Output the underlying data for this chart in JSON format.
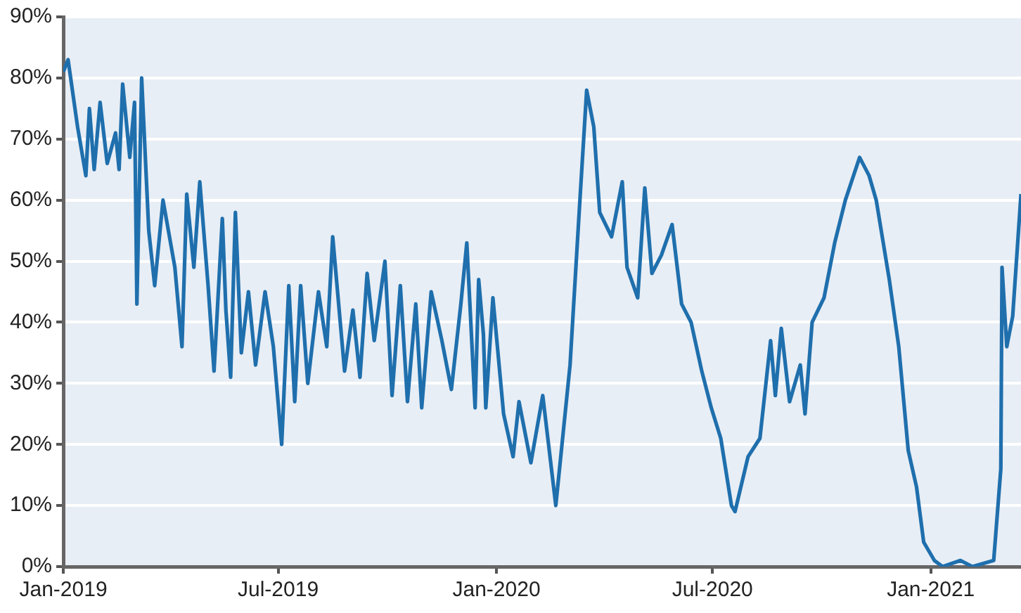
{
  "chart_data": {
    "type": "line",
    "grid": "y",
    "xlim": [
      "2019-01-01",
      "2021-03-18"
    ],
    "xticks": [
      {
        "value": "2019-01",
        "label": "Jan-2019"
      },
      {
        "value": "2019-07",
        "label": "Jul-2019"
      },
      {
        "value": "2020-01",
        "label": "Jan-2020"
      },
      {
        "value": "2020-07",
        "label": "Jul-2020"
      },
      {
        "value": "2021-01",
        "label": "Jan-2021"
      }
    ],
    "ylim": [
      0,
      90
    ],
    "yticks": [
      {
        "value": 0,
        "label": "0%"
      },
      {
        "value": 10,
        "label": "10%"
      },
      {
        "value": 20,
        "label": "20%"
      },
      {
        "value": 30,
        "label": "30%"
      },
      {
        "value": 40,
        "label": "40%"
      },
      {
        "value": 50,
        "label": "50%"
      },
      {
        "value": 60,
        "label": "60%"
      },
      {
        "value": 70,
        "label": "70%"
      },
      {
        "value": 80,
        "label": "80%"
      },
      {
        "value": 90,
        "label": "90%"
      }
    ],
    "legend": false,
    "marker": "none",
    "line_style": "solid",
    "x": [
      "2019-01-01",
      "2019-01-05",
      "2019-01-13",
      "2019-01-20",
      "2019-01-23",
      "2019-01-27",
      "2019-02-01",
      "2019-02-07",
      "2019-02-14",
      "2019-02-17",
      "2019-02-20",
      "2019-02-26",
      "2019-03-02",
      "2019-03-04",
      "2019-03-08",
      "2019-03-14",
      "2019-03-19",
      "2019-03-26",
      "2019-04-05",
      "2019-04-11",
      "2019-04-15",
      "2019-04-21",
      "2019-04-26",
      "2019-05-03",
      "2019-05-08",
      "2019-05-15",
      "2019-05-18",
      "2019-05-22",
      "2019-05-26",
      "2019-05-31",
      "2019-06-06",
      "2019-06-12",
      "2019-06-20",
      "2019-06-27",
      "2019-07-04",
      "2019-07-10",
      "2019-07-15",
      "2019-07-20",
      "2019-07-26",
      "2019-08-04",
      "2019-08-11",
      "2019-08-16",
      "2019-08-26",
      "2019-09-02",
      "2019-09-08",
      "2019-09-14",
      "2019-09-20",
      "2019-09-29",
      "2019-10-05",
      "2019-10-12",
      "2019-10-18",
      "2019-10-25",
      "2019-10-30",
      "2019-11-07",
      "2019-11-16",
      "2019-11-24",
      "2019-12-02",
      "2019-12-07",
      "2019-12-14",
      "2019-12-17",
      "2019-12-21",
      "2019-12-23",
      "2019-12-29",
      "2020-01-07",
      "2020-01-15",
      "2020-01-20",
      "2020-01-30",
      "2020-02-09",
      "2020-02-20",
      "2020-03-03",
      "2020-03-11",
      "2020-03-17",
      "2020-03-23",
      "2020-03-28",
      "2020-04-07",
      "2020-04-16",
      "2020-04-20",
      "2020-04-29",
      "2020-05-05",
      "2020-05-11",
      "2020-05-19",
      "2020-05-28",
      "2020-06-05",
      "2020-06-13",
      "2020-06-22",
      "2020-06-30",
      "2020-07-08",
      "2020-07-17",
      "2020-07-20",
      "2020-07-31",
      "2020-08-10",
      "2020-08-19",
      "2020-08-23",
      "2020-08-28",
      "2020-09-04",
      "2020-09-13",
      "2020-09-17",
      "2020-09-23",
      "2020-10-03",
      "2020-10-12",
      "2020-10-21",
      "2020-11-02",
      "2020-11-10",
      "2020-11-16",
      "2020-11-27",
      "2020-12-05",
      "2020-12-13",
      "2020-12-20",
      "2020-12-26",
      "2021-01-04",
      "2021-01-11",
      "2021-01-26",
      "2021-02-05",
      "2021-02-23",
      "2021-03-01",
      "2021-03-02",
      "2021-03-06",
      "2021-03-11",
      "2021-03-18"
    ],
    "series": [
      {
        "color": "#1f6fad",
        "values": [
          81,
          83,
          72,
          64,
          75,
          65,
          76,
          66,
          71,
          65,
          79,
          67,
          76,
          43,
          80,
          55,
          46,
          60,
          49,
          36,
          61,
          49,
          63,
          46,
          32,
          57,
          42,
          31,
          58,
          35,
          45,
          33,
          45,
          36,
          20,
          46,
          27,
          46,
          30,
          45,
          36,
          54,
          32,
          42,
          31,
          48,
          37,
          50,
          28,
          46,
          27,
          43,
          26,
          45,
          37,
          29,
          43,
          53,
          26,
          47,
          38,
          26,
          44,
          25,
          18,
          27,
          17,
          28,
          10,
          33,
          59,
          78,
          72,
          58,
          54,
          63,
          49,
          44,
          62,
          48,
          51,
          56,
          43,
          40,
          32,
          26,
          21,
          10,
          9,
          18,
          21,
          37,
          28,
          39,
          27,
          33,
          25,
          40,
          44,
          53,
          60,
          67,
          64,
          60,
          47,
          36,
          19,
          13,
          4,
          1,
          0,
          1,
          0,
          1,
          16,
          49,
          36,
          41,
          61
        ]
      }
    ]
  }
}
